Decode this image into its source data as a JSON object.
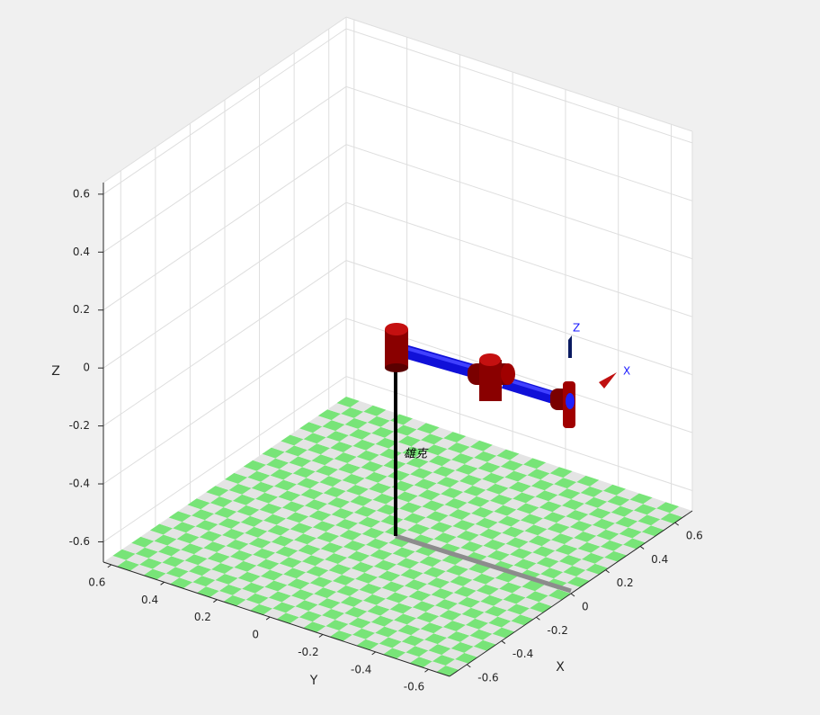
{
  "chart_data": {
    "type": "robot-3d",
    "xlabel": "X",
    "ylabel": "Y",
    "zlabel": "Z",
    "xlim": [
      -0.7,
      0.7
    ],
    "ylim": [
      -0.68,
      0.63
    ],
    "zlim": [
      -0.67,
      0.64
    ],
    "xticks": [
      -0.6,
      -0.4,
      -0.2,
      0,
      0.2,
      0.4,
      0.6
    ],
    "yticks": [
      -0.6,
      -0.4,
      -0.2,
      0,
      0.2,
      0.4,
      0.6
    ],
    "zticks": [
      -0.6,
      -0.4,
      -0.2,
      0,
      0.2,
      0.4,
      0.6
    ],
    "grid": true,
    "annotations": [
      "雄克",
      "Z",
      "X"
    ]
  }
}
